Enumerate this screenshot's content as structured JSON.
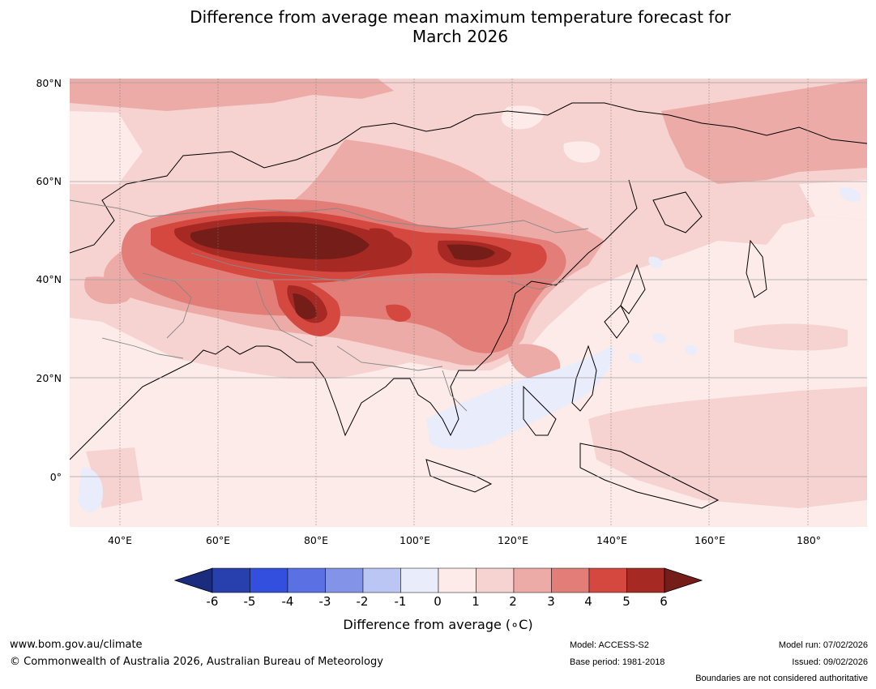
{
  "title": {
    "line1": "Difference from average mean maximum temperature forecast for",
    "line2": "March 2026"
  },
  "map": {
    "lat_labels": [
      "80°N",
      "60°N",
      "40°N",
      "20°N",
      "0°"
    ],
    "lon_labels": [
      "40°E",
      "60°E",
      "80°E",
      "100°E",
      "120°E",
      "140°E",
      "160°E",
      "180°"
    ],
    "background_anomaly": "0 to 1",
    "hotspot_region": "Central Asia / Western China",
    "cool_region": "South China Sea"
  },
  "colorbar": {
    "ticks": [
      "-6",
      "-5",
      "-4",
      "-3",
      "-2",
      "-1",
      "0",
      "1",
      "2",
      "3",
      "4",
      "5",
      "6"
    ],
    "colors": [
      "#1b2b7e",
      "#283fae",
      "#3250dd",
      "#5b70e3",
      "#8394e8",
      "#bcc6f4",
      "#e8ecfb",
      "#fcebe9",
      "#f6d3d0",
      "#edaba7",
      "#e37d78",
      "#d44840",
      "#a62a23",
      "#751d18"
    ],
    "title": "Difference from average (∘C)"
  },
  "footer": {
    "url": "www.bom.gov.au/climate",
    "copyright": "© Commonwealth of Australia 2026, Australian Bureau of Meteorology",
    "model": "Model: ACCESS-S2",
    "base_period": "Base period: 1981-2018",
    "model_run": "Model run: 07/02/2026",
    "issued": "Issued: 09/02/2026",
    "disclaimer": "Boundaries are not considered authoritative"
  }
}
